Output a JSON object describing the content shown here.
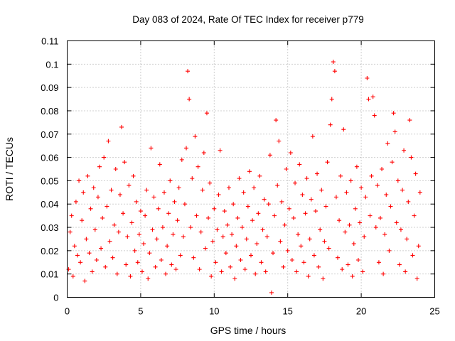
{
  "chart_data": {
    "type": "scatter",
    "title": "Day 083 of 2024, Rate Of TEC Index for receiver p779",
    "xlabel": "GPS time / hours",
    "ylabel": "ROTI / TECUs",
    "xlim": [
      0,
      25
    ],
    "ylim": [
      0,
      0.11
    ],
    "xticks": [
      0,
      5,
      10,
      15,
      20,
      25
    ],
    "xtick_labels": [
      "0",
      "5",
      "10",
      "15",
      "20",
      "25"
    ],
    "yticks": [
      0,
      0.01,
      0.02,
      0.03,
      0.04,
      0.05,
      0.06,
      0.07,
      0.08,
      0.09,
      0.1,
      0.11
    ],
    "ytick_labels": [
      "0",
      "0.01",
      "0.02",
      "0.03",
      "0.04",
      "0.05",
      "0.06",
      "0.07",
      "0.08",
      "0.09",
      "0.1",
      "0.11"
    ],
    "grid": true,
    "marker": "+",
    "marker_color": "#ff0000",
    "series": [
      {
        "name": "ROTI",
        "points": [
          [
            0.1,
            0.012
          ],
          [
            0.2,
            0.028
          ],
          [
            0.3,
            0.035
          ],
          [
            0.4,
            0.009
          ],
          [
            0.5,
            0.022
          ],
          [
            0.6,
            0.041
          ],
          [
            0.7,
            0.018
          ],
          [
            0.8,
            0.05
          ],
          [
            0.9,
            0.015
          ],
          [
            1.0,
            0.033
          ],
          [
            1.1,
            0.045
          ],
          [
            1.2,
            0.007
          ],
          [
            1.3,
            0.025
          ],
          [
            1.4,
            0.052
          ],
          [
            1.5,
            0.019
          ],
          [
            1.6,
            0.038
          ],
          [
            1.7,
            0.011
          ],
          [
            1.8,
            0.047
          ],
          [
            1.9,
            0.029
          ],
          [
            2.0,
            0.016
          ],
          [
            2.1,
            0.043
          ],
          [
            2.2,
            0.056
          ],
          [
            2.3,
            0.021
          ],
          [
            2.4,
            0.034
          ],
          [
            2.5,
            0.06
          ],
          [
            2.6,
            0.013
          ],
          [
            2.7,
            0.039
          ],
          [
            2.8,
            0.067
          ],
          [
            2.9,
            0.024
          ],
          [
            3.0,
            0.046
          ],
          [
            3.1,
            0.017
          ],
          [
            3.2,
            0.031
          ],
          [
            3.3,
            0.055
          ],
          [
            3.4,
            0.01
          ],
          [
            3.5,
            0.028
          ],
          [
            3.6,
            0.044
          ],
          [
            3.7,
            0.073
          ],
          [
            3.8,
            0.036
          ],
          [
            3.9,
            0.058
          ],
          [
            4.0,
            0.014
          ],
          [
            4.1,
            0.026
          ],
          [
            4.2,
            0.048
          ],
          [
            4.3,
            0.009
          ],
          [
            4.4,
            0.032
          ],
          [
            4.5,
            0.052
          ],
          [
            4.6,
            0.02
          ],
          [
            4.7,
            0.041
          ],
          [
            4.8,
            0.015
          ],
          [
            4.9,
            0.027
          ],
          [
            5.0,
            0.037
          ],
          [
            5.1,
            0.011
          ],
          [
            5.2,
            0.023
          ],
          [
            5.3,
            0.035
          ],
          [
            5.4,
            0.046
          ],
          [
            5.5,
            0.008
          ],
          [
            5.6,
            0.019
          ],
          [
            5.7,
            0.064
          ],
          [
            5.8,
            0.029
          ],
          [
            5.9,
            0.043
          ],
          [
            6.0,
            0.013
          ],
          [
            6.1,
            0.025
          ],
          [
            6.2,
            0.038
          ],
          [
            6.3,
            0.057
          ],
          [
            6.4,
            0.016
          ],
          [
            6.5,
            0.03
          ],
          [
            6.6,
            0.045
          ],
          [
            6.7,
            0.01
          ],
          [
            6.8,
            0.022
          ],
          [
            6.9,
            0.036
          ],
          [
            7.0,
            0.05
          ],
          [
            7.1,
            0.014
          ],
          [
            7.2,
            0.027
          ],
          [
            7.3,
            0.041
          ],
          [
            7.4,
            0.012
          ],
          [
            7.5,
            0.033
          ],
          [
            7.6,
            0.047
          ],
          [
            7.7,
            0.018
          ],
          [
            7.8,
            0.059
          ],
          [
            7.9,
            0.026
          ],
          [
            8.0,
            0.04
          ],
          [
            8.1,
            0.064
          ],
          [
            8.2,
            0.097
          ],
          [
            8.3,
            0.085
          ],
          [
            8.4,
            0.03
          ],
          [
            8.5,
            0.051
          ],
          [
            8.6,
            0.017
          ],
          [
            8.7,
            0.069
          ],
          [
            8.8,
            0.035
          ],
          [
            8.9,
            0.056
          ],
          [
            9.0,
            0.012
          ],
          [
            9.1,
            0.028
          ],
          [
            9.2,
            0.046
          ],
          [
            9.3,
            0.062
          ],
          [
            9.4,
            0.021
          ],
          [
            9.5,
            0.079
          ],
          [
            9.6,
            0.034
          ],
          [
            9.7,
            0.049
          ],
          [
            9.8,
            0.009
          ],
          [
            9.9,
            0.024
          ],
          [
            10.0,
            0.038
          ],
          [
            10.1,
            0.015
          ],
          [
            10.2,
            0.029
          ],
          [
            10.3,
            0.044
          ],
          [
            10.4,
            0.063
          ],
          [
            10.5,
            0.011
          ],
          [
            10.6,
            0.026
          ],
          [
            10.7,
            0.037
          ],
          [
            10.8,
            0.019
          ],
          [
            10.9,
            0.031
          ],
          [
            11.0,
            0.047
          ],
          [
            11.1,
            0.013
          ],
          [
            11.2,
            0.027
          ],
          [
            11.3,
            0.04
          ],
          [
            11.4,
            0.008
          ],
          [
            11.5,
            0.022
          ],
          [
            11.6,
            0.034
          ],
          [
            11.7,
            0.051
          ],
          [
            11.8,
            0.016
          ],
          [
            11.9,
            0.03
          ],
          [
            12.0,
            0.045
          ],
          [
            12.1,
            0.012
          ],
          [
            12.2,
            0.025
          ],
          [
            12.3,
            0.039
          ],
          [
            12.4,
            0.054
          ],
          [
            12.5,
            0.018
          ],
          [
            12.6,
            0.033
          ],
          [
            12.7,
            0.047
          ],
          [
            12.8,
            0.01
          ],
          [
            12.9,
            0.023
          ],
          [
            13.0,
            0.036
          ],
          [
            13.1,
            0.052
          ],
          [
            13.2,
            0.015
          ],
          [
            13.3,
            0.029
          ],
          [
            13.4,
            0.042
          ],
          [
            13.5,
            0.011
          ],
          [
            13.6,
            0.026
          ],
          [
            13.7,
            0.04
          ],
          [
            13.8,
            0.061
          ],
          [
            13.9,
            0.002
          ],
          [
            14.0,
            0.019
          ],
          [
            14.1,
            0.035
          ],
          [
            14.2,
            0.076
          ],
          [
            14.3,
            0.048
          ],
          [
            14.4,
            0.067
          ],
          [
            14.5,
            0.024
          ],
          [
            14.6,
            0.041
          ],
          [
            14.7,
            0.013
          ],
          [
            14.8,
            0.031
          ],
          [
            14.9,
            0.055
          ],
          [
            15.0,
            0.02
          ],
          [
            15.1,
            0.038
          ],
          [
            15.2,
            0.062
          ],
          [
            15.3,
            0.016
          ],
          [
            15.4,
            0.034
          ],
          [
            15.5,
            0.049
          ],
          [
            15.6,
            0.011
          ],
          [
            15.7,
            0.027
          ],
          [
            15.8,
            0.057
          ],
          [
            15.9,
            0.022
          ],
          [
            16.0,
            0.044
          ],
          [
            16.1,
            0.015
          ],
          [
            16.2,
            0.036
          ],
          [
            16.3,
            0.051
          ],
          [
            16.4,
            0.009
          ],
          [
            16.5,
            0.025
          ],
          [
            16.6,
            0.042
          ],
          [
            16.7,
            0.069
          ],
          [
            16.8,
            0.018
          ],
          [
            16.9,
            0.037
          ],
          [
            17.0,
            0.053
          ],
          [
            17.1,
            0.013
          ],
          [
            17.2,
            0.029
          ],
          [
            17.3,
            0.046
          ],
          [
            17.4,
            0.008
          ],
          [
            17.5,
            0.024
          ],
          [
            17.6,
            0.039
          ],
          [
            17.7,
            0.058
          ],
          [
            17.8,
            0.021
          ],
          [
            17.9,
            0.074
          ],
          [
            18.0,
            0.085
          ],
          [
            18.1,
            0.101
          ],
          [
            18.2,
            0.097
          ],
          [
            18.3,
            0.043
          ],
          [
            18.4,
            0.017
          ],
          [
            18.5,
            0.033
          ],
          [
            18.6,
            0.052
          ],
          [
            18.7,
            0.012
          ],
          [
            18.8,
            0.072
          ],
          [
            18.9,
            0.028
          ],
          [
            19.0,
            0.045
          ],
          [
            19.1,
            0.014
          ],
          [
            19.2,
            0.031
          ],
          [
            19.3,
            0.05
          ],
          [
            19.4,
            0.009
          ],
          [
            19.5,
            0.023
          ],
          [
            19.6,
            0.038
          ],
          [
            19.7,
            0.056
          ],
          [
            19.8,
            0.016
          ],
          [
            19.9,
            0.032
          ],
          [
            20.0,
            0.047
          ],
          [
            20.1,
            0.011
          ],
          [
            20.2,
            0.026
          ],
          [
            20.3,
            0.043
          ],
          [
            20.4,
            0.094
          ],
          [
            20.5,
            0.085
          ],
          [
            20.6,
            0.035
          ],
          [
            20.7,
            0.052
          ],
          [
            20.8,
            0.086
          ],
          [
            20.9,
            0.078
          ],
          [
            21.0,
            0.03
          ],
          [
            21.1,
            0.048
          ],
          [
            21.2,
            0.015
          ],
          [
            21.3,
            0.034
          ],
          [
            21.4,
            0.055
          ],
          [
            21.5,
            0.01
          ],
          [
            21.6,
            0.027
          ],
          [
            21.7,
            0.044
          ],
          [
            21.8,
            0.066
          ],
          [
            21.9,
            0.02
          ],
          [
            22.0,
            0.039
          ],
          [
            22.1,
            0.058
          ],
          [
            22.2,
            0.079
          ],
          [
            22.3,
            0.071
          ],
          [
            22.4,
            0.032
          ],
          [
            22.5,
            0.05
          ],
          [
            22.6,
            0.014
          ],
          [
            22.7,
            0.029
          ],
          [
            22.8,
            0.046
          ],
          [
            22.9,
            0.063
          ],
          [
            23.0,
            0.011
          ],
          [
            23.1,
            0.025
          ],
          [
            23.2,
            0.041
          ],
          [
            23.3,
            0.076
          ],
          [
            23.4,
            0.06
          ],
          [
            23.5,
            0.018
          ],
          [
            23.6,
            0.035
          ],
          [
            23.7,
            0.053
          ],
          [
            23.8,
            0.008
          ],
          [
            23.9,
            0.022
          ],
          [
            24.0,
            0.045
          ]
        ]
      }
    ]
  }
}
